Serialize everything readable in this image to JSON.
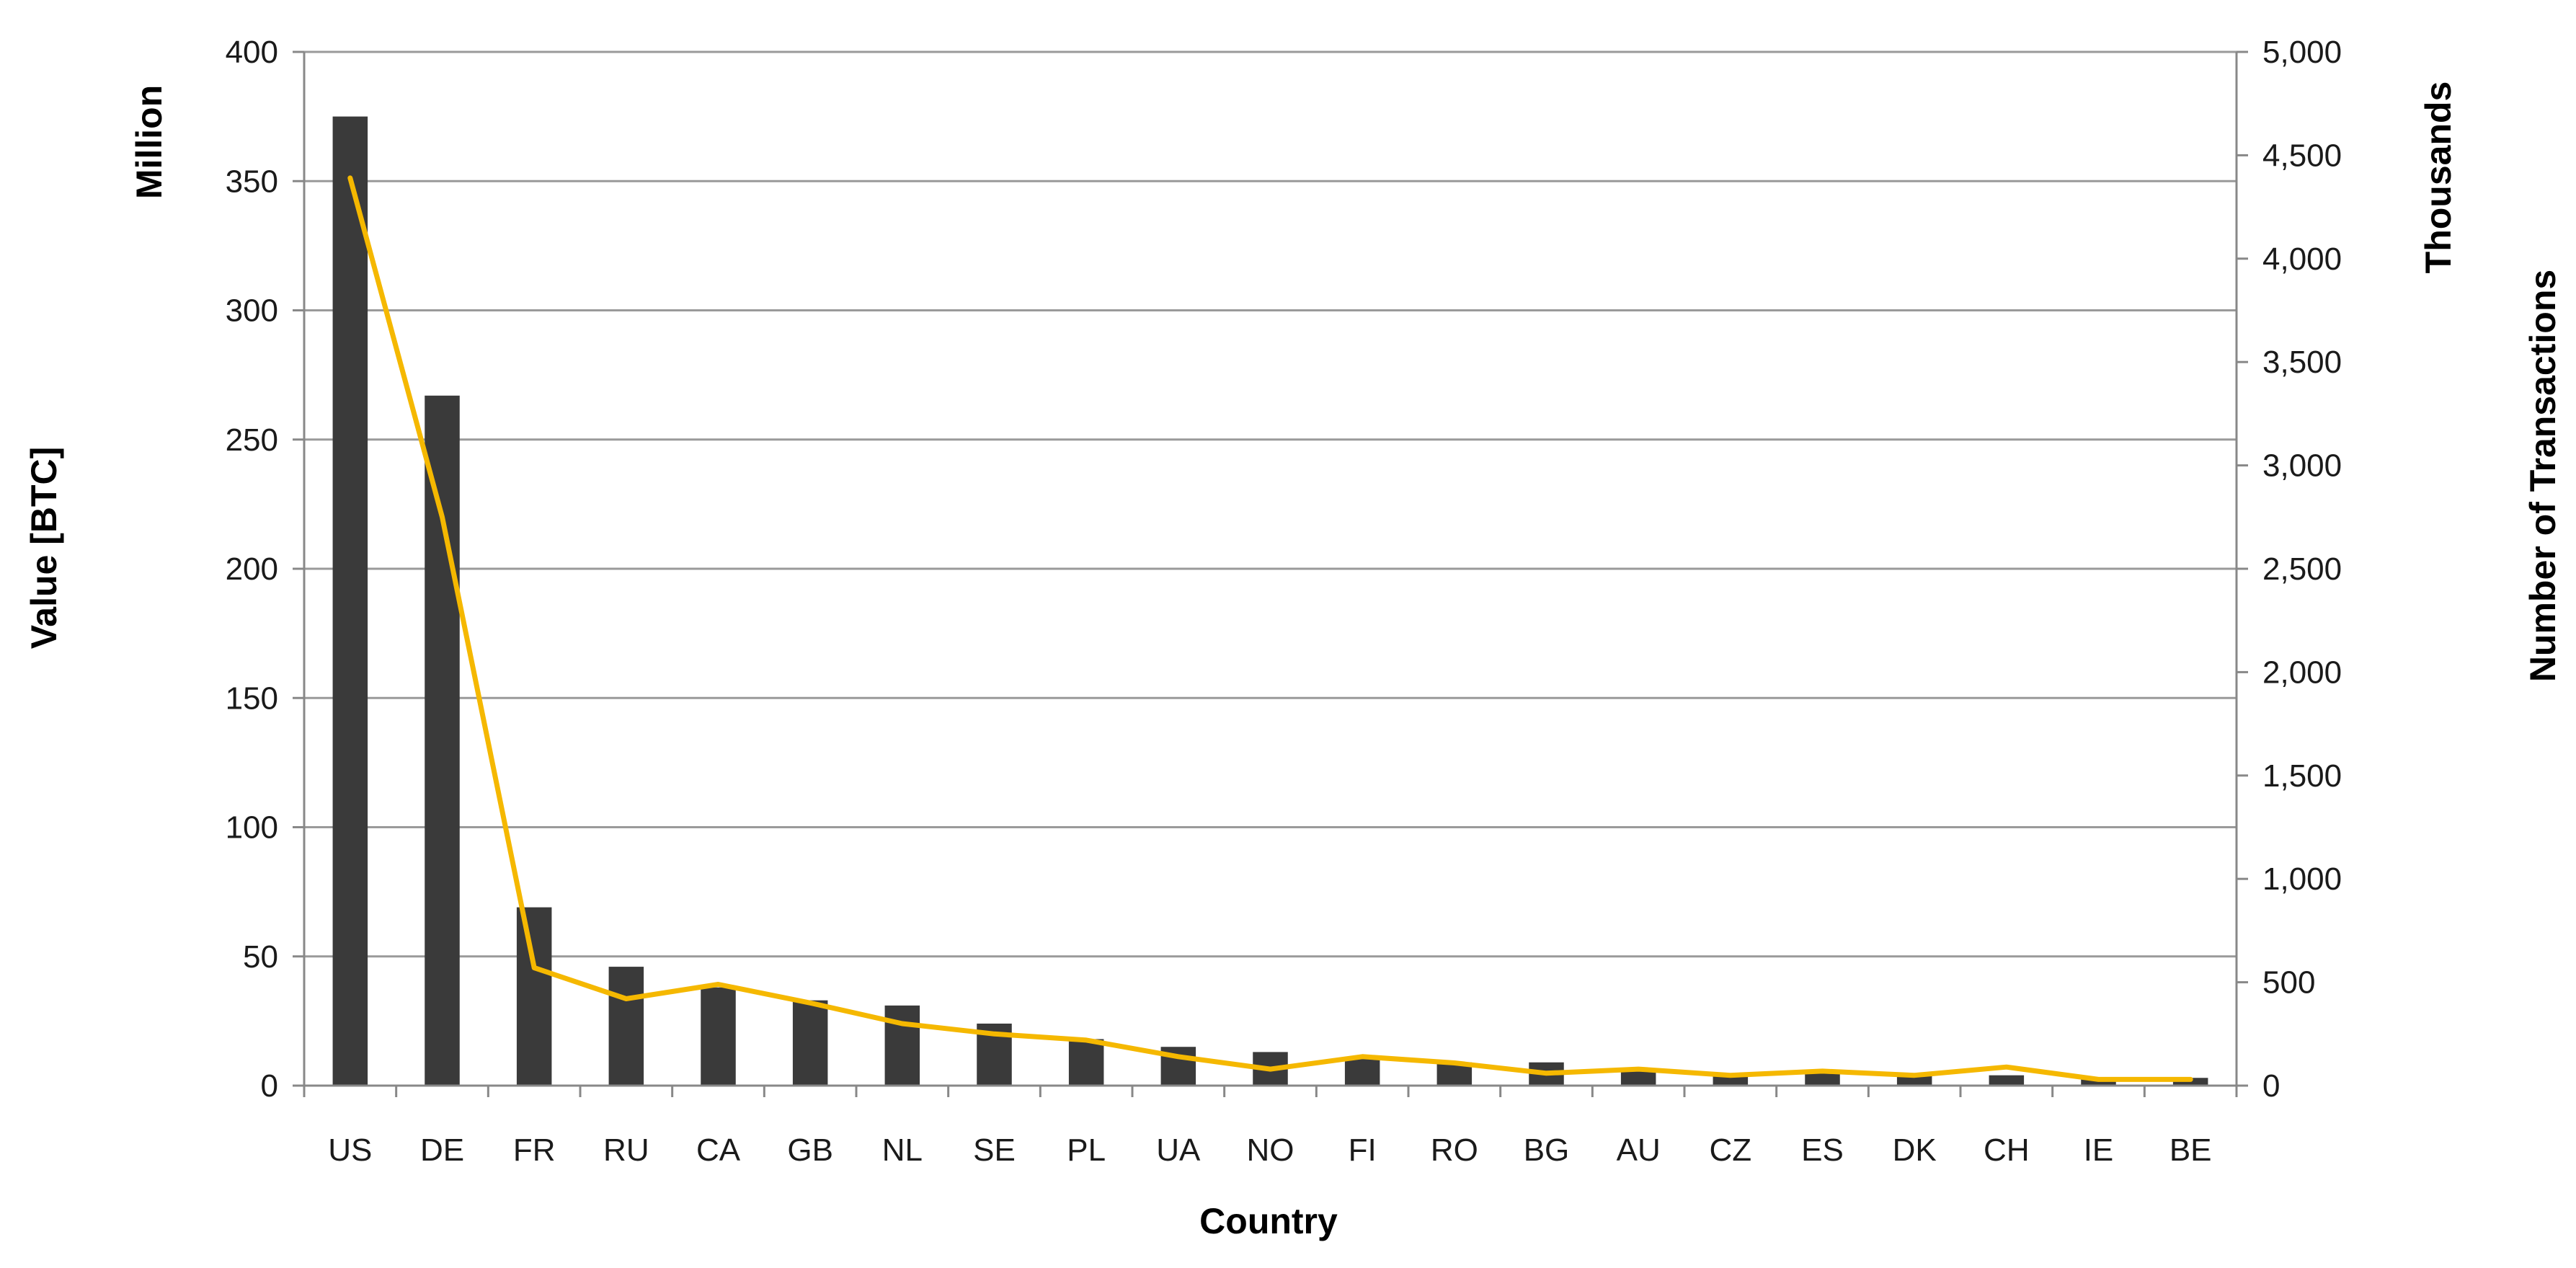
{
  "chart_data": {
    "type": "bar",
    "combo": "bar+line",
    "categories": [
      "US",
      "DE",
      "FR",
      "RU",
      "CA",
      "GB",
      "NL",
      "SE",
      "PL",
      "UA",
      "NO",
      "FI",
      "RO",
      "BG",
      "AU",
      "CZ",
      "ES",
      "DK",
      "CH",
      "IE",
      "BE"
    ],
    "series": [
      {
        "type": "bar",
        "axis": "left",
        "color": "#3a3a3a",
        "values": [
          375,
          267,
          69,
          46,
          38,
          33,
          31,
          24,
          18,
          15,
          13,
          11,
          9,
          9,
          6,
          4,
          5,
          4,
          4,
          3,
          3
        ]
      },
      {
        "type": "line",
        "axis": "right",
        "color": "#f5b800",
        "values": [
          4390,
          2750,
          570,
          420,
          490,
          400,
          300,
          250,
          220,
          140,
          80,
          140,
          110,
          60,
          80,
          50,
          70,
          50,
          90,
          30,
          30
        ]
      }
    ],
    "xlabel": "Country",
    "ylabel": "Value [BTC]",
    "ylabel_unit": "Million",
    "y2label": "Number of Transactions",
    "y2label_unit": "Thousands",
    "ylim": [
      0,
      400
    ],
    "y2lim": [
      0,
      5000
    ],
    "yticks": [
      "0",
      "50",
      "100",
      "150",
      "200",
      "250",
      "300",
      "350",
      "400"
    ],
    "y2ticks": [
      "0",
      "500",
      "1,000",
      "1,500",
      "2,000",
      "2,500",
      "3,000",
      "3,500",
      "4,000",
      "4,500",
      "5,000"
    ],
    "grid": "horizontal",
    "legend": "none"
  }
}
